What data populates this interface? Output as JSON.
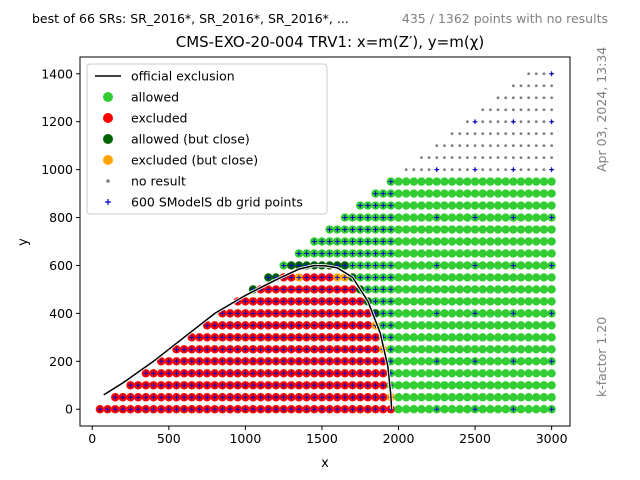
{
  "header": {
    "left_text": "best of 66 SRs: SR_2016*, SR_2016*, SR_2016*, ...",
    "right_text": "435 / 1362 points with no results"
  },
  "side": {
    "date": "Apr 03, 2024, 13:34",
    "kfactor": "k-factor 1.20"
  },
  "chart_data": {
    "type": "scatter",
    "title": "CMS-EXO-20-004 TRV1: x=m(Z′), y=m(χ)",
    "xlabel": "x",
    "ylabel": "y",
    "xlim": [
      -80,
      3120
    ],
    "ylim": [
      -70,
      1470
    ],
    "xticks": [
      0,
      500,
      1000,
      1500,
      2000,
      2500,
      3000
    ],
    "yticks": [
      0,
      200,
      400,
      600,
      800,
      1000,
      1200,
      1400
    ],
    "legend_position": "top-left",
    "legend": [
      {
        "label": "official exclusion",
        "marker": "line",
        "color": "#000000"
      },
      {
        "label": "allowed",
        "marker": "big-dot",
        "color": "#32cd32"
      },
      {
        "label": "excluded",
        "marker": "big-dot",
        "color": "#ff0000"
      },
      {
        "label": "allowed (but close)",
        "marker": "big-dot",
        "color": "#006400"
      },
      {
        "label": "excluded (but close)",
        "marker": "big-dot",
        "color": "#ffa500"
      },
      {
        "label": "no result",
        "marker": "small-dot",
        "color": "#808080"
      },
      {
        "label": "600 SModelS db grid points",
        "marker": "plus",
        "color": "#0000cd"
      }
    ],
    "colors": {
      "allowed": "#32cd32",
      "excluded": "#ff0000",
      "allowed_close": "#006400",
      "excluded_close": "#ffa500",
      "no_result": "#808080",
      "grid_points": "#0000cd",
      "exclusion_line": "#000000"
    },
    "regions": {
      "grid_step": 50,
      "diagonal": "points exist only where y < x/2",
      "allowed_above_x": 2000,
      "no_result_above_y": 1000
    },
    "exclusion_curve": {
      "x": [
        75,
        200,
        400,
        600,
        800,
        1000,
        1200,
        1350,
        1450,
        1525,
        1600,
        1700,
        1800,
        1880,
        1930,
        1950,
        1955
      ],
      "y": [
        60,
        110,
        200,
        300,
        400,
        475,
        540,
        585,
        600,
        598,
        590,
        550,
        450,
        320,
        180,
        60,
        0
      ]
    }
  }
}
